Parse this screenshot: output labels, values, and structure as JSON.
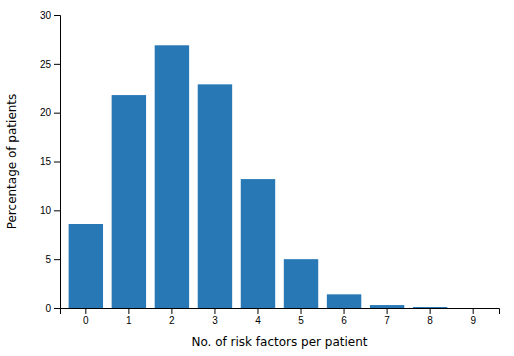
{
  "chart_data": {
    "type": "bar",
    "categories": [
      0,
      1,
      2,
      3,
      4,
      5,
      6,
      7,
      8,
      9
    ],
    "values": [
      8.6,
      21.8,
      26.9,
      22.9,
      13.2,
      5.0,
      1.4,
      0.3,
      0.1,
      0.0
    ],
    "color": "#2878b5",
    "xlabel": "No. of risk factors per patient",
    "ylabel": "Percentage of patients",
    "ylim": [
      0,
      30
    ],
    "yticks": [
      0,
      5,
      10,
      15,
      20,
      25,
      30
    ],
    "grid": false
  }
}
